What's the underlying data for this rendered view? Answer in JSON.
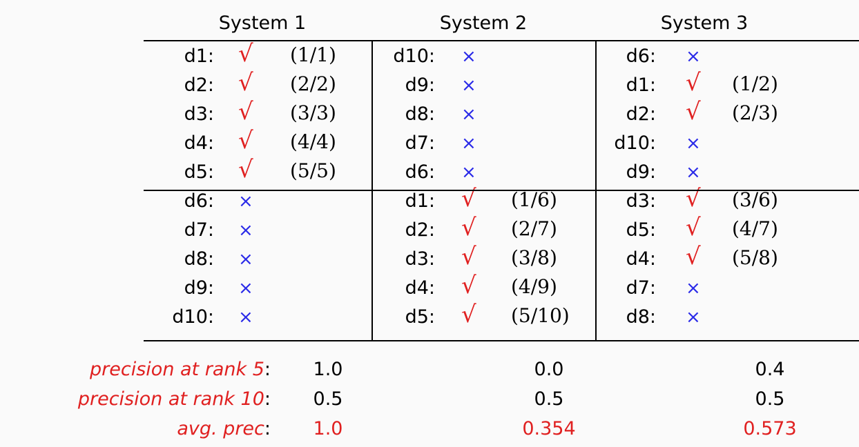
{
  "systems": [
    {
      "header": "System 1",
      "rows": [
        {
          "doc": "d1:",
          "mark": "check",
          "frac": "(1/1)"
        },
        {
          "doc": "d2:",
          "mark": "check",
          "frac": "(2/2)"
        },
        {
          "doc": "d3:",
          "mark": "check",
          "frac": "(3/3)"
        },
        {
          "doc": "d4:",
          "mark": "check",
          "frac": "(4/4)"
        },
        {
          "doc": "d5:",
          "mark": "check",
          "frac": "(5/5)"
        },
        {
          "doc": "d6:",
          "mark": "cross",
          "frac": ""
        },
        {
          "doc": "d7:",
          "mark": "cross",
          "frac": ""
        },
        {
          "doc": "d8:",
          "mark": "cross",
          "frac": ""
        },
        {
          "doc": "d9:",
          "mark": "cross",
          "frac": ""
        },
        {
          "doc": "d10:",
          "mark": "cross",
          "frac": ""
        }
      ],
      "precision_at_5": "1.0",
      "precision_at_10": "0.5",
      "avg_prec": "1.0"
    },
    {
      "header": "System 2",
      "rows": [
        {
          "doc": "d10:",
          "mark": "cross",
          "frac": ""
        },
        {
          "doc": "d9:",
          "mark": "cross",
          "frac": ""
        },
        {
          "doc": "d8:",
          "mark": "cross",
          "frac": ""
        },
        {
          "doc": "d7:",
          "mark": "cross",
          "frac": ""
        },
        {
          "doc": "d6:",
          "mark": "cross",
          "frac": ""
        },
        {
          "doc": "d1:",
          "mark": "check",
          "frac": "(1/6)"
        },
        {
          "doc": "d2:",
          "mark": "check",
          "frac": "(2/7)"
        },
        {
          "doc": "d3:",
          "mark": "check",
          "frac": "(3/8)"
        },
        {
          "doc": "d4:",
          "mark": "check",
          "frac": "(4/9)"
        },
        {
          "doc": "d5:",
          "mark": "check",
          "frac": "(5/10)"
        }
      ],
      "precision_at_5": "0.0",
      "precision_at_10": "0.5",
      "avg_prec": "0.354"
    },
    {
      "header": "System 3",
      "rows": [
        {
          "doc": "d6:",
          "mark": "cross",
          "frac": ""
        },
        {
          "doc": "d1:",
          "mark": "check",
          "frac": "(1/2)"
        },
        {
          "doc": "d2:",
          "mark": "check",
          "frac": "(2/3)"
        },
        {
          "doc": "d10:",
          "mark": "cross",
          "frac": ""
        },
        {
          "doc": "d9:",
          "mark": "cross",
          "frac": ""
        },
        {
          "doc": "d3:",
          "mark": "check",
          "frac": "(3/6)"
        },
        {
          "doc": "d5:",
          "mark": "check",
          "frac": "(4/7)"
        },
        {
          "doc": "d4:",
          "mark": "check",
          "frac": "(5/8)"
        },
        {
          "doc": "d7:",
          "mark": "cross",
          "frac": ""
        },
        {
          "doc": "d8:",
          "mark": "cross",
          "frac": ""
        }
      ],
      "precision_at_5": "0.4",
      "precision_at_10": "0.5",
      "avg_prec": "0.573"
    }
  ],
  "marks": {
    "check": "√",
    "cross": "×"
  },
  "labels": {
    "precision_at_5": "precision at rank 5",
    "precision_at_10": "precision at rank 10",
    "avg_prec": "avg. prec",
    "colon": ":"
  },
  "colors": {
    "relevant": "#e02020",
    "irrelevant": "#2a2ae8",
    "highlight": "#e02020"
  }
}
